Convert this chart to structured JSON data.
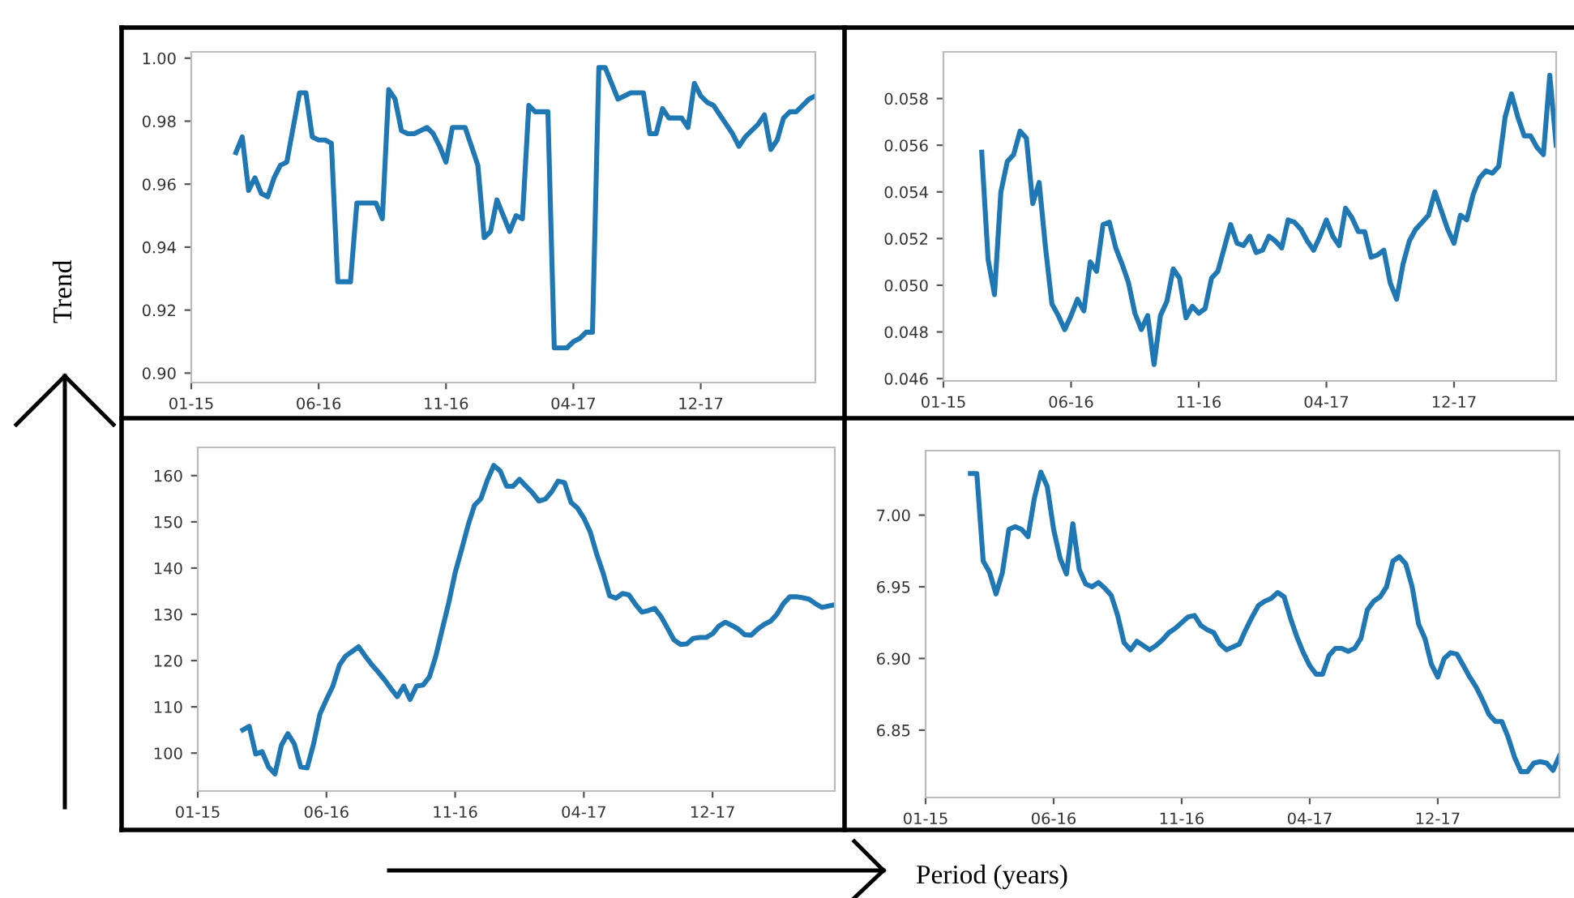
{
  "chart_data": [
    {
      "type": "line",
      "annotations": [
        "Trend"
      ],
      "ylim": [
        0.897,
        1.002
      ],
      "categories": [
        "01-15",
        null,
        null,
        null,
        null,
        null,
        null,
        null,
        null,
        null,
        null,
        null,
        null,
        null,
        null,
        null,
        null,
        null,
        null,
        null,
        "06-16",
        null,
        null,
        null,
        null,
        null,
        null,
        null,
        null,
        null,
        null,
        null,
        null,
        null,
        null,
        null,
        null,
        null,
        null,
        null,
        "11-16",
        null,
        null,
        null,
        null,
        null,
        null,
        null,
        null,
        null,
        null,
        null,
        null,
        null,
        null,
        null,
        null,
        null,
        null,
        null,
        "04-17",
        null,
        null,
        null,
        null,
        null,
        null,
        null,
        null,
        null,
        null,
        null,
        null,
        null,
        null,
        null,
        null,
        null,
        null,
        null,
        "12-17",
        null,
        null,
        null,
        null,
        null,
        null,
        null,
        null,
        null,
        null,
        null,
        null,
        null,
        null,
        null,
        null,
        null,
        null
      ],
      "yticks": [
        {
          "value": 0.9,
          "label": "0.90"
        },
        0.92,
        0.94,
        0.96,
        0.98,
        {
          "value": 1.0,
          "label": "1.00"
        }
      ],
      "grid": false,
      "legend": false,
      "series": [
        {
          "color": "#1f77b4",
          "values": [
            null,
            null,
            null,
            null,
            null,
            null,
            null,
            0.97,
            0.975,
            0.958,
            0.962,
            0.957,
            0.956,
            0.962,
            0.966,
            0.967,
            0.978,
            0.989,
            0.989,
            0.975,
            0.974,
            0.974,
            0.973,
            0.929,
            0.929,
            0.929,
            0.954,
            0.954,
            0.954,
            0.954,
            0.949,
            0.99,
            0.987,
            0.977,
            0.976,
            0.976,
            0.977,
            0.978,
            0.976,
            0.972,
            0.967,
            0.978,
            0.978,
            0.978,
            0.972,
            0.966,
            0.943,
            0.945,
            0.955,
            0.95,
            0.945,
            0.95,
            0.949,
            0.985,
            0.983,
            0.983,
            0.983,
            0.908,
            0.908,
            0.908,
            0.91,
            0.911,
            0.913,
            0.913,
            0.997,
            0.997,
            0.992,
            0.987,
            0.988,
            0.989,
            0.989,
            0.989,
            0.976,
            0.976,
            0.984,
            0.981,
            0.981,
            0.981,
            0.978,
            0.992,
            0.988,
            0.986,
            0.985,
            0.982,
            0.979,
            0.976,
            0.972,
            0.975,
            0.977,
            0.979,
            0.982,
            0.971,
            0.974,
            0.981,
            0.983,
            0.983,
            0.985,
            0.987,
            0.988
          ]
        }
      ]
    },
    {
      "type": "line",
      "ylim": [
        0.0459,
        0.06
      ],
      "categories": [
        "01-15",
        null,
        null,
        null,
        null,
        null,
        null,
        null,
        null,
        null,
        null,
        null,
        null,
        null,
        null,
        null,
        null,
        null,
        null,
        null,
        "06-16",
        null,
        null,
        null,
        null,
        null,
        null,
        null,
        null,
        null,
        null,
        null,
        null,
        null,
        null,
        null,
        null,
        null,
        null,
        null,
        "11-16",
        null,
        null,
        null,
        null,
        null,
        null,
        null,
        null,
        null,
        null,
        null,
        null,
        null,
        null,
        null,
        null,
        null,
        null,
        null,
        "04-17",
        null,
        null,
        null,
        null,
        null,
        null,
        null,
        null,
        null,
        null,
        null,
        null,
        null,
        null,
        null,
        null,
        null,
        null,
        null,
        "12-17",
        null,
        null,
        null,
        null,
        null,
        null,
        null,
        null,
        null,
        null,
        null,
        null,
        null,
        null,
        null,
        null
      ],
      "yticks": [
        {
          "value": 0.046,
          "label": "0.046"
        },
        {
          "value": 0.048,
          "label": "0.048"
        },
        {
          "value": 0.05,
          "label": "0.050"
        },
        {
          "value": 0.052,
          "label": "0.052"
        },
        {
          "value": 0.054,
          "label": "0.054"
        },
        {
          "value": 0.056,
          "label": "0.056"
        },
        {
          "value": 0.058,
          "label": "0.058"
        }
      ],
      "grid": false,
      "legend": false,
      "series": [
        {
          "color": "#1f77b4",
          "values": [
            null,
            null,
            null,
            null,
            null,
            null,
            0.0557,
            0.0511,
            0.0496,
            0.054,
            0.0553,
            0.0556,
            0.0566,
            0.0563,
            0.0535,
            0.0544,
            0.0516,
            0.0492,
            0.0487,
            0.0481,
            0.0487,
            0.0494,
            0.0489,
            0.051,
            0.0506,
            0.0526,
            0.0527,
            0.0516,
            0.0509,
            0.0501,
            0.0488,
            0.0481,
            0.0487,
            0.0466,
            0.0487,
            0.0493,
            0.0507,
            0.0503,
            0.0486,
            0.0491,
            0.0488,
            0.049,
            0.0503,
            0.0506,
            0.0516,
            0.0526,
            0.0518,
            0.0517,
            0.0521,
            0.0514,
            0.0515,
            0.0521,
            0.0519,
            0.0516,
            0.0528,
            0.0527,
            0.0524,
            0.0519,
            0.0515,
            0.0521,
            0.0528,
            0.0521,
            0.0517,
            0.0533,
            0.0529,
            0.0523,
            0.0523,
            0.0512,
            0.0513,
            0.0515,
            0.0501,
            0.0494,
            0.0509,
            0.0519,
            0.0524,
            0.0527,
            0.053,
            0.054,
            0.0532,
            0.0524,
            0.0518,
            0.053,
            0.0528,
            0.0539,
            0.0546,
            0.0549,
            0.0548,
            0.0551,
            0.0572,
            0.0582,
            0.0572,
            0.0564,
            0.0564,
            0.0559,
            0.0556,
            0.059,
            0.056
          ]
        }
      ]
    },
    {
      "type": "line",
      "ylim": [
        91.8,
        166.1
      ],
      "categories": [
        "01-15",
        null,
        null,
        null,
        null,
        null,
        null,
        null,
        null,
        null,
        null,
        null,
        null,
        null,
        null,
        null,
        null,
        null,
        null,
        null,
        "06-16",
        null,
        null,
        null,
        null,
        null,
        null,
        null,
        null,
        null,
        null,
        null,
        null,
        null,
        null,
        null,
        null,
        null,
        null,
        null,
        "11-16",
        null,
        null,
        null,
        null,
        null,
        null,
        null,
        null,
        null,
        null,
        null,
        null,
        null,
        null,
        null,
        null,
        null,
        null,
        null,
        "04-17",
        null,
        null,
        null,
        null,
        null,
        null,
        null,
        null,
        null,
        null,
        null,
        null,
        null,
        null,
        null,
        null,
        null,
        null,
        null,
        "12-17",
        null,
        null,
        null,
        null,
        null,
        null,
        null,
        null,
        null,
        null,
        null,
        null,
        null,
        null,
        null,
        null,
        null,
        null,
        null
      ],
      "yticks": [
        100,
        110,
        120,
        130,
        140,
        150,
        160
      ],
      "grid": false,
      "legend": false,
      "series": [
        {
          "color": "#1f77b4",
          "values": [
            null,
            null,
            null,
            null,
            null,
            null,
            null,
            105.0,
            105.8,
            99.8,
            100.3,
            97.0,
            95.5,
            101.7,
            104.2,
            102.0,
            97.0,
            96.8,
            102.0,
            108.5,
            111.6,
            114.5,
            119.0,
            121.0,
            122.0,
            123.0,
            121.0,
            119.2,
            117.6,
            115.9,
            114.0,
            112.2,
            114.5,
            111.6,
            114.5,
            114.7,
            116.5,
            121.0,
            126.8,
            132.5,
            139.0,
            144.0,
            149.2,
            153.6,
            155.0,
            159.0,
            162.2,
            161.0,
            157.7,
            157.7,
            159.2,
            157.7,
            156.3,
            154.5,
            154.9,
            156.5,
            158.8,
            158.5,
            154.2,
            153.0,
            150.8,
            147.8,
            143.0,
            138.9,
            134.0,
            133.5,
            134.5,
            134.2,
            132.2,
            130.5,
            130.8,
            131.3,
            129.5,
            127.0,
            124.5,
            123.5,
            123.6,
            124.8,
            125.0,
            125.0,
            125.8,
            127.5,
            128.3,
            127.6,
            126.8,
            125.6,
            125.5,
            126.8,
            127.8,
            128.5,
            130.0,
            132.3,
            133.8,
            133.8,
            133.6,
            133.3,
            132.3,
            131.5,
            131.8,
            132.1
          ]
        }
      ]
    },
    {
      "type": "line",
      "annotations": [
        "Period (years)"
      ],
      "ylim": [
        6.803,
        7.045
      ],
      "categories": [
        "01-15",
        null,
        null,
        null,
        null,
        null,
        null,
        null,
        null,
        null,
        null,
        null,
        null,
        null,
        null,
        null,
        null,
        null,
        null,
        null,
        "06-16",
        null,
        null,
        null,
        null,
        null,
        null,
        null,
        null,
        null,
        null,
        null,
        null,
        null,
        null,
        null,
        null,
        null,
        null,
        null,
        "11-16",
        null,
        null,
        null,
        null,
        null,
        null,
        null,
        null,
        null,
        null,
        null,
        null,
        null,
        null,
        null,
        null,
        null,
        null,
        null,
        "04-17",
        null,
        null,
        null,
        null,
        null,
        null,
        null,
        null,
        null,
        null,
        null,
        null,
        null,
        null,
        null,
        null,
        null,
        null,
        null,
        "12-17",
        null,
        null,
        null,
        null,
        null,
        null,
        null,
        null,
        null,
        null,
        null,
        null,
        null,
        null,
        null,
        null,
        null,
        null,
        null
      ],
      "yticks": [
        6.85,
        {
          "value": 6.9,
          "label": "6.90"
        },
        6.95,
        {
          "value": 7.0,
          "label": "7.00"
        }
      ],
      "grid": false,
      "legend": false,
      "series": [
        {
          "color": "#1f77b4",
          "values": [
            null,
            null,
            null,
            null,
            null,
            null,
            null,
            7.029,
            7.029,
            6.968,
            6.96,
            6.945,
            6.96,
            6.99,
            6.992,
            6.99,
            6.985,
            7.012,
            7.03,
            7.02,
            6.99,
            6.97,
            6.959,
            6.994,
            6.962,
            6.952,
            6.95,
            6.953,
            6.949,
            6.944,
            6.93,
            6.911,
            6.906,
            6.912,
            6.909,
            6.906,
            6.909,
            6.913,
            6.918,
            6.921,
            6.925,
            6.929,
            6.93,
            6.923,
            6.92,
            6.918,
            6.91,
            6.906,
            6.908,
            6.91,
            6.92,
            6.929,
            6.937,
            6.94,
            6.942,
            6.946,
            6.943,
            6.928,
            6.915,
            6.904,
            6.895,
            6.889,
            6.889,
            6.902,
            6.907,
            6.907,
            6.905,
            6.907,
            6.914,
            6.934,
            6.94,
            6.943,
            6.95,
            6.968,
            6.971,
            6.966,
            6.95,
            6.924,
            6.914,
            6.896,
            6.887,
            6.9,
            6.904,
            6.903,
            6.895,
            6.887,
            6.88,
            6.871,
            6.861,
            6.856,
            6.856,
            6.845,
            6.831,
            6.821,
            6.821,
            6.827,
            6.828,
            6.827,
            6.822,
            6.832
          ]
        }
      ]
    }
  ]
}
